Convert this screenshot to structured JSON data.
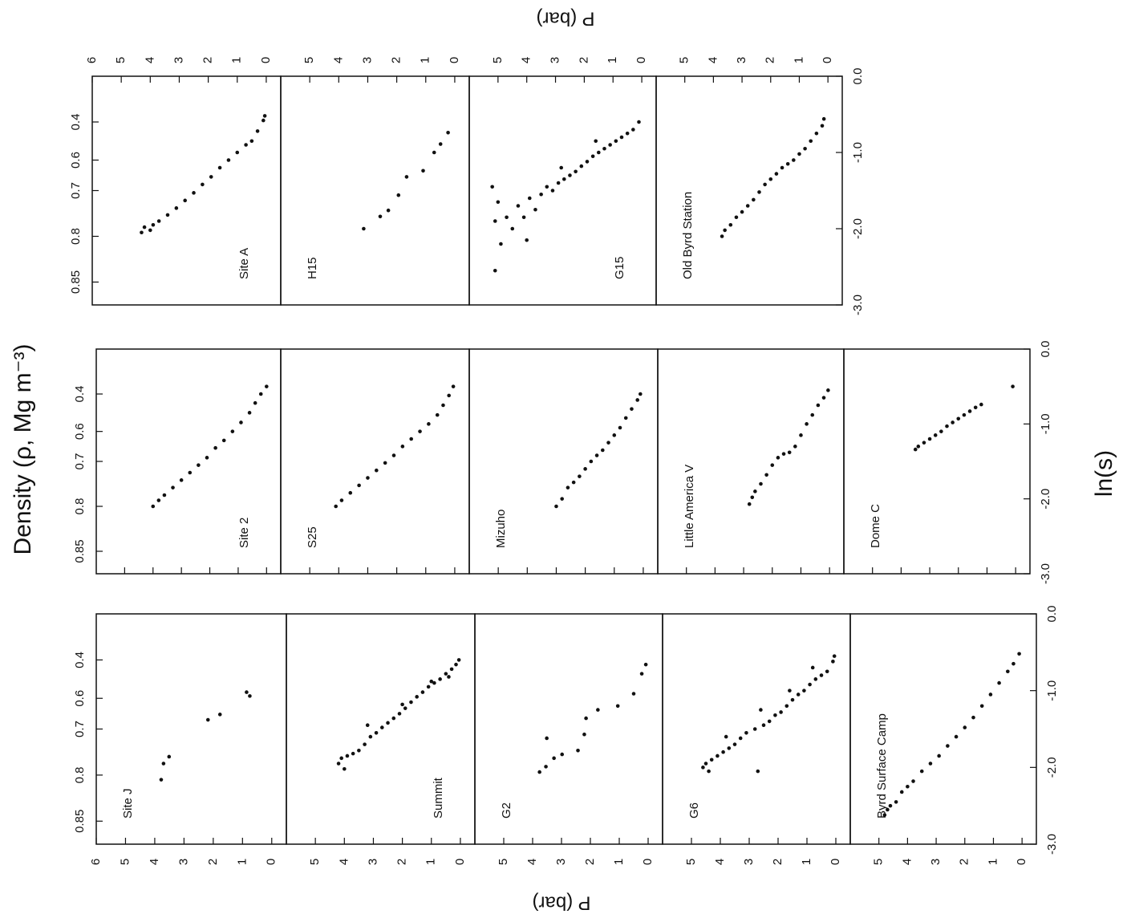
{
  "chart_data": {
    "type": "scatter",
    "x2label": "Density (ρ, Mg m⁻³)",
    "xlabel": "ln(s)",
    "ylabel": "P (bar)",
    "xlim": [
      -3,
      0
    ],
    "xticks": [
      {
        "value": -3,
        "label": "-3.0"
      },
      {
        "value": -2,
        "label": "-2.0"
      },
      {
        "value": -1,
        "label": "-1.0"
      },
      {
        "value": 0,
        "label": "0.0"
      }
    ],
    "x2ticks": [
      {
        "value": -2.7,
        "label": "0.85"
      },
      {
        "value": -2.1,
        "label": "0.8"
      },
      {
        "value": -1.5,
        "label": "0.7"
      },
      {
        "value": -1.1,
        "label": "0.6"
      },
      {
        "value": -0.6,
        "label": "0.4"
      }
    ],
    "ylim": [
      -0.5,
      6
    ],
    "marker_color": "#111111",
    "columns": [
      {
        "ytick_labels": "bottom",
        "panels": [
          {
            "title": "Site J",
            "yticks": [
              0,
              1,
              2,
              3,
              4,
              5,
              6
            ],
            "x": [
              -2.16,
              -1.95,
              -1.86,
              -1.38,
              -1.31,
              -1.02,
              -1.07
            ],
            "values": [
              3.78,
              3.7,
              3.51,
              2.18,
              1.77,
              0.86,
              0.75
            ]
          },
          {
            "title": "Summit",
            "yticks": [
              0,
              1,
              2,
              3,
              4,
              5
            ],
            "x": [
              -1.95,
              -1.88,
              -2.02,
              -1.85,
              -1.82,
              -1.78,
              -1.7,
              -1.6,
              -1.55,
              -1.48,
              -1.42,
              -1.36,
              -1.3,
              -1.23,
              -1.15,
              -1.08,
              -1.02,
              -0.95,
              -0.9,
              -0.85,
              -0.78,
              -0.72,
              -0.66,
              -0.6,
              -1.45,
              -1.18,
              -0.88,
              -0.82
            ],
            "values": [
              4.2,
              4.1,
              4.0,
              3.9,
              3.7,
              3.5,
              3.3,
              3.1,
              2.9,
              2.7,
              2.5,
              2.3,
              2.1,
              1.9,
              1.7,
              1.5,
              1.3,
              1.1,
              0.9,
              0.7,
              0.5,
              0.3,
              0.15,
              0.05,
              3.2,
              2.0,
              1.0,
              0.4
            ]
          },
          {
            "title": "G2",
            "yticks": [
              0,
              1,
              2,
              3,
              4,
              5
            ],
            "x": [
              -2.06,
              -1.99,
              -1.88,
              -1.83,
              -1.78,
              -1.57,
              -1.36,
              -1.25,
              -1.2,
              -1.04,
              -0.78,
              -0.66,
              -1.62
            ],
            "values": [
              3.76,
              3.54,
              3.26,
              2.98,
              2.43,
              2.21,
              2.15,
              1.74,
              1.05,
              0.5,
              0.22,
              0.08,
              3.51
            ]
          },
          {
            "title": "G6",
            "yticks": [
              0,
              1,
              2,
              3,
              4,
              5
            ],
            "x": [
              -2.0,
              -1.95,
              -2.05,
              -1.9,
              -1.85,
              -1.8,
              -1.75,
              -1.7,
              -1.62,
              -1.55,
              -1.5,
              -2.05,
              -1.45,
              -1.4,
              -1.32,
              -1.28,
              -1.2,
              -1.12,
              -1.05,
              -1.0,
              -0.92,
              -0.85,
              -0.8,
              -0.75,
              -0.62,
              -0.55,
              -1.6,
              -1.25,
              -1.0,
              -0.7
            ],
            "values": [
              4.6,
              4.5,
              4.4,
              4.3,
              4.1,
              3.9,
              3.7,
              3.5,
              3.3,
              3.1,
              2.8,
              2.7,
              2.5,
              2.3,
              2.1,
              1.9,
              1.7,
              1.5,
              1.3,
              1.1,
              0.9,
              0.7,
              0.5,
              0.3,
              0.1,
              0.05,
              3.8,
              2.6,
              1.6,
              0.8
            ]
          },
          {
            "title": "Byrd Surface Camp",
            "yticks": [
              0,
              1,
              2,
              3,
              4,
              5
            ],
            "x": [
              -2.62,
              -2.55,
              -2.5,
              -2.45,
              -2.32,
              -2.25,
              -2.18,
              -2.05,
              -1.95,
              -1.85,
              -1.72,
              -1.6,
              -1.48,
              -1.35,
              -1.2,
              -1.05,
              -0.9,
              -0.75,
              -0.65,
              -0.52
            ],
            "values": [
              4.8,
              4.7,
              4.6,
              4.4,
              4.2,
              4.0,
              3.8,
              3.5,
              3.2,
              2.9,
              2.6,
              2.3,
              2.0,
              1.7,
              1.4,
              1.1,
              0.8,
              0.5,
              0.3,
              0.1
            ]
          }
        ]
      },
      {
        "ytick_labels": "none",
        "panels": [
          {
            "title": "Site 2",
            "yticks": [
              0,
              1,
              2,
              3,
              4,
              5
            ],
            "x": [
              -2.1,
              -2.02,
              -1.95,
              -1.85,
              -1.75,
              -1.65,
              -1.55,
              -1.45,
              -1.32,
              -1.22,
              -1.1,
              -0.98,
              -0.85,
              -0.72,
              -0.6,
              -0.5
            ],
            "values": [
              4.0,
              3.8,
              3.6,
              3.3,
              3.0,
              2.7,
              2.4,
              2.1,
              1.8,
              1.5,
              1.2,
              0.9,
              0.6,
              0.4,
              0.2,
              0.0
            ]
          },
          {
            "title": "S25",
            "yticks": [
              0,
              1,
              2,
              3,
              4,
              5
            ],
            "x": [
              -2.1,
              -2.02,
              -1.92,
              -1.82,
              -1.72,
              -1.62,
              -1.52,
              -1.42,
              -1.3,
              -1.2,
              -1.1,
              -1.0,
              -0.88,
              -0.75,
              -0.62,
              -0.5
            ],
            "values": [
              4.1,
              3.9,
              3.6,
              3.3,
              3.0,
              2.7,
              2.4,
              2.1,
              1.8,
              1.5,
              1.2,
              0.9,
              0.6,
              0.4,
              0.2,
              0.05
            ]
          },
          {
            "title": "Mizuho",
            "yticks": [
              0,
              1,
              2,
              3,
              4,
              5
            ],
            "x": [
              -2.1,
              -2.0,
              -1.85,
              -1.78,
              -1.7,
              -1.6,
              -1.5,
              -1.42,
              -1.35,
              -1.25,
              -1.15,
              -1.05,
              -0.92,
              -0.8,
              -0.68,
              -0.6
            ],
            "values": [
              3.0,
              2.8,
              2.6,
              2.4,
              2.2,
              2.0,
              1.8,
              1.6,
              1.4,
              1.2,
              1.0,
              0.8,
              0.6,
              0.4,
              0.2,
              0.1
            ]
          },
          {
            "title": "Little America V",
            "yticks": [
              0,
              1,
              2,
              3,
              4,
              5
            ],
            "x": [
              -2.07,
              -1.98,
              -1.9,
              -1.8,
              -1.68,
              -1.55,
              -1.45,
              -1.4,
              -1.38,
              -1.3,
              -1.15,
              -1.0,
              -0.88,
              -0.75,
              -0.65,
              -0.55
            ],
            "values": [
              2.8,
              2.7,
              2.6,
              2.4,
              2.2,
              2.0,
              1.8,
              1.6,
              1.4,
              1.2,
              1.0,
              0.8,
              0.6,
              0.4,
              0.2,
              0.05
            ]
          },
          {
            "title": "Dome C",
            "yticks": [
              0,
              1,
              2,
              3,
              4,
              5
            ],
            "x": [
              -1.34,
              -1.3,
              -1.25,
              -1.2,
              -1.15,
              -1.1,
              -1.03,
              -0.98,
              -0.93,
              -0.88,
              -0.83,
              -0.78,
              -0.74,
              -0.5
            ],
            "values": [
              3.5,
              3.4,
              3.2,
              3.0,
              2.8,
              2.6,
              2.4,
              2.2,
              2.0,
              1.8,
              1.6,
              1.4,
              1.2,
              0.1
            ]
          }
        ]
      },
      {
        "ytick_labels": "top",
        "panels": [
          {
            "title": "Site A",
            "yticks": [
              0,
              1,
              2,
              3,
              4,
              5,
              6
            ],
            "x": [
              -2.05,
              -1.98,
              -2.02,
              -1.95,
              -1.9,
              -1.82,
              -1.73,
              -1.63,
              -1.53,
              -1.42,
              -1.32,
              -1.2,
              -1.1,
              -1.0,
              -0.9,
              -0.85,
              -0.72,
              -0.58,
              -0.52
            ],
            "values": [
              4.3,
              4.2,
              4.0,
              3.9,
              3.7,
              3.4,
              3.1,
              2.8,
              2.5,
              2.2,
              1.9,
              1.6,
              1.3,
              1.0,
              0.7,
              0.5,
              0.3,
              0.1,
              0.05
            ]
          },
          {
            "title": "H15",
            "yticks": [
              0,
              1,
              2,
              3,
              4,
              5
            ],
            "x": [
              -2.0,
              -1.84,
              -1.76,
              -1.56,
              -1.32,
              -1.24,
              -1.0,
              -0.89,
              -0.74
            ],
            "values": [
              3.14,
              2.57,
              2.29,
              1.94,
              1.66,
              1.09,
              0.71,
              0.49,
              0.23
            ]
          },
          {
            "title": "G15",
            "yticks": [
              0,
              1,
              2,
              3,
              4,
              5
            ],
            "x": [
              -2.55,
              -1.9,
              -1.65,
              -2.2,
              -1.85,
              -2.0,
              -1.7,
              -1.85,
              -1.6,
              -1.75,
              -1.55,
              -1.45,
              -1.5,
              -1.4,
              -1.35,
              -1.3,
              -1.25,
              -1.18,
              -1.12,
              -1.05,
              -1.0,
              -0.95,
              -0.9,
              -0.85,
              -0.8,
              -0.75,
              -0.7,
              -0.6,
              -2.15,
              -1.2,
              -0.85,
              -1.45
            ],
            "values": [
              5.1,
              5.1,
              5.0,
              4.9,
              4.7,
              4.5,
              4.3,
              4.1,
              3.9,
              3.7,
              3.5,
              3.3,
              3.1,
              2.9,
              2.7,
              2.5,
              2.3,
              2.1,
              1.9,
              1.7,
              1.5,
              1.3,
              1.1,
              0.9,
              0.7,
              0.5,
              0.3,
              0.1,
              4.0,
              2.8,
              1.6,
              5.2
            ]
          },
          {
            "title": "Old Byrd Station",
            "yticks": [
              0,
              1,
              2,
              3,
              4,
              5
            ],
            "x": [
              -2.1,
              -2.02,
              -1.95,
              -1.85,
              -1.78,
              -1.7,
              -1.62,
              -1.52,
              -1.42,
              -1.35,
              -1.28,
              -1.2,
              -1.15,
              -1.1,
              -1.02,
              -0.95,
              -0.85,
              -0.75,
              -0.65,
              -0.56
            ],
            "values": [
              3.7,
              3.6,
              3.4,
              3.2,
              3.0,
              2.8,
              2.6,
              2.4,
              2.2,
              2.0,
              1.8,
              1.6,
              1.4,
              1.2,
              1.0,
              0.8,
              0.6,
              0.4,
              0.2,
              0.14
            ]
          }
        ]
      }
    ]
  }
}
